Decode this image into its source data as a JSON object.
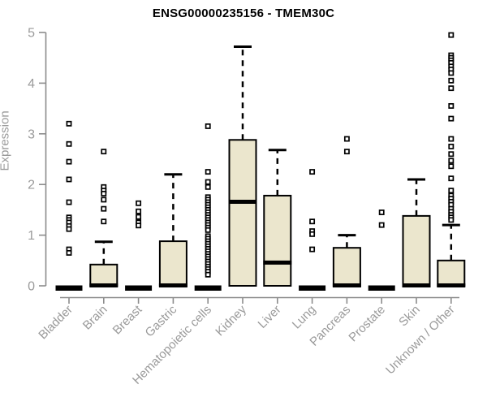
{
  "page": {
    "background": "#ffffff"
  },
  "header": {
    "title": "ENSG00000235156 - TMEM30C"
  },
  "chart_data": {
    "type": "boxplot",
    "title": "ENSG00000235156 - TMEM30C",
    "xlabel": "",
    "ylabel": "Expression",
    "ylim": [
      0,
      5
    ],
    "yticks": [
      0,
      1,
      2,
      3,
      4,
      5
    ],
    "grid": false,
    "legend": "none",
    "categories": [
      "Bladder",
      "Brain",
      "Breast",
      "Gastric",
      "Hematopoietic cells",
      "Kidney",
      "Liver",
      "Lung",
      "Pancreas",
      "Prostate",
      "Skin",
      "Unknown / Other"
    ],
    "series": [
      {
        "name": "Bladder",
        "q1": 0,
        "median": 0,
        "q3": 0,
        "whisker_low": 0,
        "whisker_high": 0,
        "outliers": [
          3.2,
          2.8,
          2.45,
          2.1,
          1.65,
          1.35,
          1.3,
          1.25,
          1.18,
          1.12,
          0.72,
          0.65
        ]
      },
      {
        "name": "Brain",
        "q1": 0,
        "median": 0,
        "q3": 0.42,
        "whisker_low": 0,
        "whisker_high": 0.87,
        "outliers": [
          2.65,
          1.95,
          1.88,
          1.82,
          1.7,
          1.52,
          1.27
        ]
      },
      {
        "name": "Breast",
        "q1": 0,
        "median": 0,
        "q3": 0,
        "whisker_low": 0,
        "whisker_high": 0,
        "outliers": [
          1.63,
          1.47,
          1.36,
          1.25,
          1.19
        ]
      },
      {
        "name": "Gastric",
        "q1": 0,
        "median": 0,
        "q3": 0.88,
        "whisker_low": 0,
        "whisker_high": 2.2,
        "outliers": []
      },
      {
        "name": "Hematopoietic cells",
        "q1": 0,
        "median": 0,
        "q3": 0,
        "whisker_low": 0,
        "whisker_high": 0,
        "outliers": [
          3.15,
          2.25,
          2.05,
          1.95,
          1.75,
          1.7,
          1.65,
          1.6,
          1.55,
          1.5,
          1.45,
          1.4,
          1.35,
          1.3,
          1.25,
          1.2,
          1.15,
          1.1,
          0.98,
          0.93,
          0.88,
          0.83,
          0.78,
          0.73,
          0.68,
          0.63,
          0.58,
          0.53,
          0.48,
          0.43,
          0.38,
          0.33,
          0.28,
          0.22
        ]
      },
      {
        "name": "Kidney",
        "q1": 0,
        "median": 1.65,
        "q3": 2.88,
        "whisker_low": 0,
        "whisker_high": 4.72,
        "outliers": []
      },
      {
        "name": "Liver",
        "q1": 0,
        "median": 0.45,
        "q3": 1.78,
        "whisker_low": 0,
        "whisker_high": 2.68,
        "outliers": []
      },
      {
        "name": "Lung",
        "q1": 0,
        "median": 0,
        "q3": 0,
        "whisker_low": 0,
        "whisker_high": 0,
        "outliers": [
          2.25,
          1.27,
          1.08,
          1.02,
          0.72
        ]
      },
      {
        "name": "Pancreas",
        "q1": 0,
        "median": 0,
        "q3": 0.75,
        "whisker_low": 0,
        "whisker_high": 1.0,
        "outliers": [
          2.9,
          2.65
        ]
      },
      {
        "name": "Prostate",
        "q1": 0,
        "median": 0,
        "q3": 0,
        "whisker_low": 0,
        "whisker_high": 0,
        "outliers": [
          1.45,
          1.2
        ]
      },
      {
        "name": "Skin",
        "q1": 0,
        "median": 0,
        "q3": 1.38,
        "whisker_low": 0,
        "whisker_high": 2.1,
        "outliers": []
      },
      {
        "name": "Unknown / Other",
        "q1": 0,
        "median": 0,
        "q3": 0.5,
        "whisker_low": 0,
        "whisker_high": 1.2,
        "outliers": [
          4.95,
          4.55,
          4.5,
          4.45,
          4.4,
          4.33,
          4.27,
          4.2,
          4.05,
          3.9,
          3.55,
          3.3,
          2.9,
          2.75,
          2.6,
          2.47,
          2.36,
          2.12,
          1.88,
          1.78,
          1.72,
          1.66,
          1.6,
          1.52,
          1.46,
          1.4,
          1.35,
          1.3
        ]
      }
    ],
    "colors": {
      "box_fill": "#EBE6CD",
      "box_stroke": "#000000",
      "axis": "#8c8c8c",
      "tick_text": "#9a9a9a",
      "title": "#000000",
      "background": "#ffffff"
    }
  }
}
